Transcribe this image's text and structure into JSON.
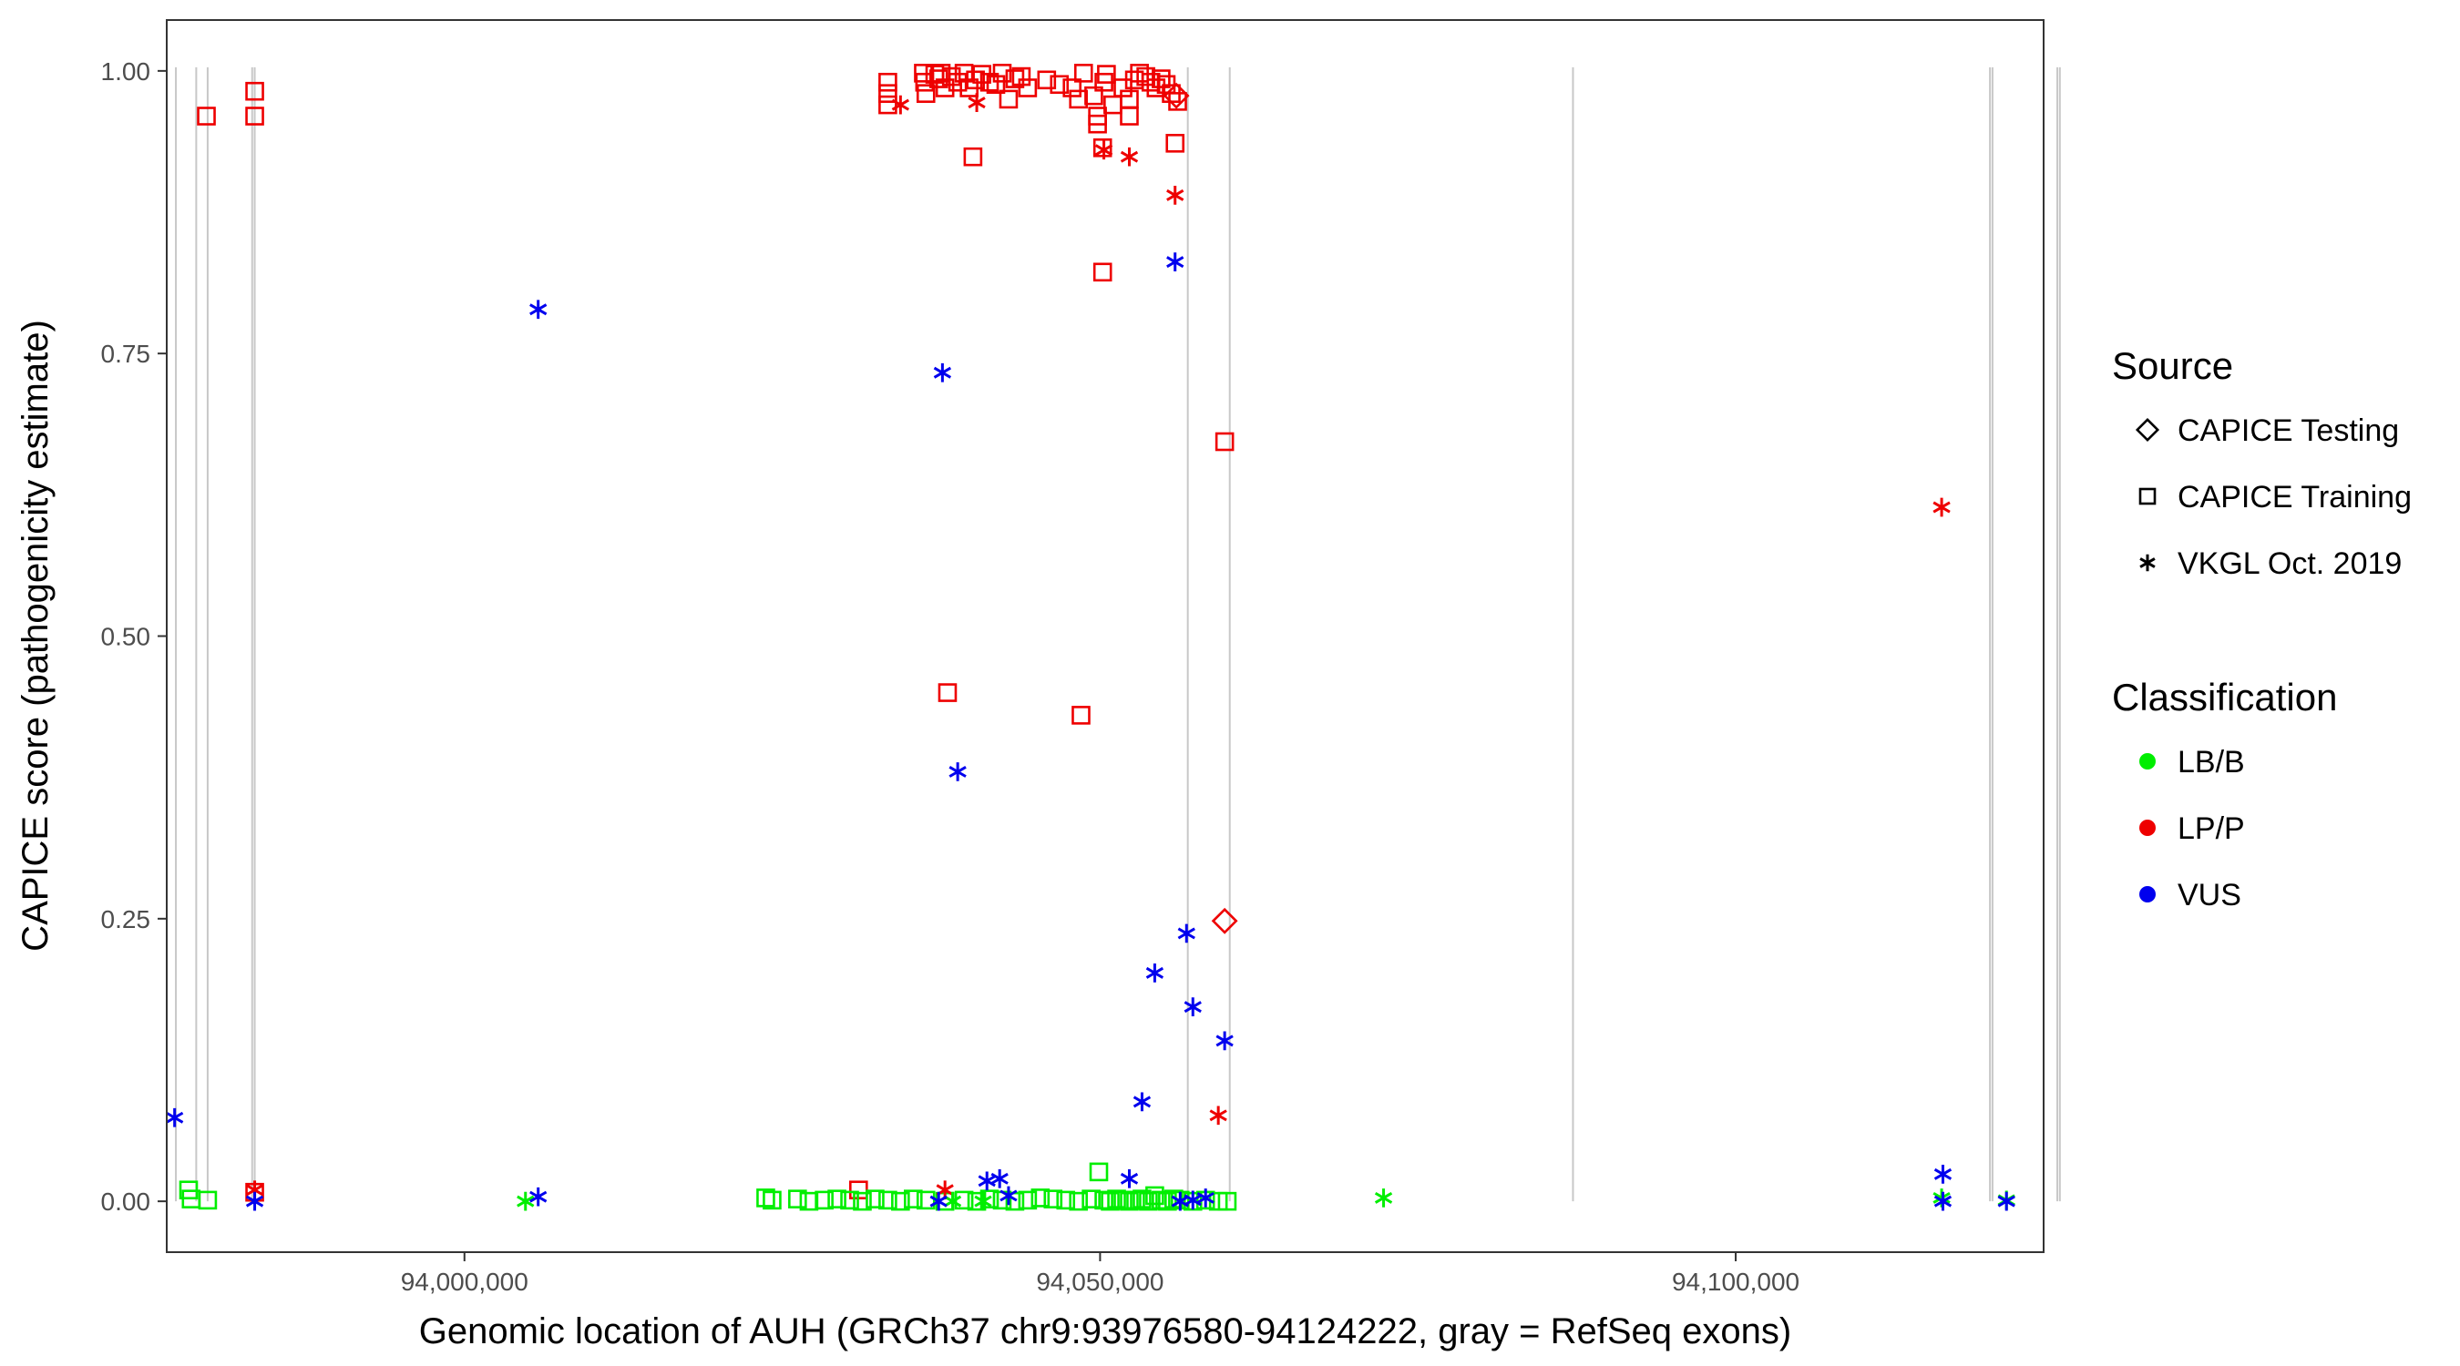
{
  "chart_data": {
    "type": "scatter",
    "title": "",
    "xlabel": "Genomic location of AUH (GRCh37 chr9:93976580-94124222, gray = RefSeq exons)",
    "ylabel": "CAPICE score (pathogenicity estimate)",
    "xlim": [
      93976580,
      94124222
    ],
    "ylim": [
      -0.045,
      1.045
    ],
    "x_ticks": [
      94000000,
      94050000,
      94100000
    ],
    "x_tick_labels": [
      "94,000,000",
      "94,050,000",
      "94,100,000"
    ],
    "y_ticks": [
      0,
      0.25,
      0.5,
      0.75,
      1.0
    ],
    "y_tick_labels": [
      "0.00",
      "0.25",
      "0.50",
      "0.75",
      "1.00"
    ],
    "grid": false,
    "exons": [
      93977300,
      93978900,
      93979800,
      93983300,
      93983500,
      94056900,
      94060200,
      94087200,
      94120000,
      94120200,
      94125300,
      94125500
    ],
    "colors": {
      "LB/B": "#00ee00",
      "LP/P": "#ee0000",
      "VUS": "#0000ee",
      "exon": "#c8c8c8"
    },
    "legend": {
      "source_title": "Source",
      "source_items": [
        {
          "shape": "diamond",
          "label": "CAPICE Testing"
        },
        {
          "shape": "square",
          "label": "CAPICE Training"
        },
        {
          "shape": "asterisk",
          "label": "VKGL Oct. 2019"
        }
      ],
      "class_title": "Classification",
      "class_items": [
        {
          "cls": "LB/B",
          "label": "LB/B"
        },
        {
          "cls": "LP/P",
          "label": "LP/P"
        },
        {
          "cls": "VUS",
          "label": "VUS"
        }
      ]
    },
    "series": [
      {
        "name": "CAPICE Training / LP/P",
        "shape": "square",
        "cls": "LP/P",
        "points": [
          [
            93979700,
            0.96
          ],
          [
            93983500,
            0.982
          ],
          [
            93983500,
            0.96
          ],
          [
            93983500,
            0.008
          ],
          [
            94033300,
            0.99
          ],
          [
            94033300,
            0.98
          ],
          [
            94033300,
            0.97
          ],
          [
            94036100,
            0.998
          ],
          [
            94036200,
            0.99
          ],
          [
            94036300,
            0.98
          ],
          [
            94037000,
            0.997
          ],
          [
            94037300,
            0.993
          ],
          [
            94037500,
            0.998
          ],
          [
            94037800,
            0.985
          ],
          [
            94038300,
            0.995
          ],
          [
            94038800,
            0.99
          ],
          [
            94039300,
            0.998
          ],
          [
            94039700,
            0.985
          ],
          [
            94040200,
            0.992
          ],
          [
            94040700,
            0.997
          ],
          [
            94041300,
            0.99
          ],
          [
            94041800,
            0.988
          ],
          [
            94042300,
            0.998
          ],
          [
            94042800,
            0.975
          ],
          [
            94043300,
            0.993
          ],
          [
            94043800,
            0.995
          ],
          [
            94044300,
            0.985
          ],
          [
            94045800,
            0.992
          ],
          [
            94046800,
            0.988
          ],
          [
            94047800,
            0.985
          ],
          [
            94048300,
            0.975
          ],
          [
            94048700,
            0.998
          ],
          [
            94049500,
            0.978
          ],
          [
            94049800,
            0.96
          ],
          [
            94050300,
            0.99
          ],
          [
            94050500,
            0.997
          ],
          [
            94051000,
            0.97
          ],
          [
            94051800,
            0.985
          ],
          [
            94052300,
            0.975
          ],
          [
            94052700,
            0.992
          ],
          [
            94053100,
            0.998
          ],
          [
            94053600,
            0.995
          ],
          [
            94054000,
            0.99
          ],
          [
            94054400,
            0.985
          ],
          [
            94054800,
            0.993
          ],
          [
            94055200,
            0.988
          ],
          [
            94055600,
            0.98
          ],
          [
            94040000,
            0.924
          ],
          [
            94049800,
            0.953
          ],
          [
            94050200,
            0.932
          ],
          [
            94052300,
            0.96
          ],
          [
            94055900,
            0.936
          ],
          [
            94056100,
            0.973
          ],
          [
            94050200,
            0.822
          ],
          [
            94059800,
            0.672
          ],
          [
            94038000,
            0.45
          ],
          [
            94048500,
            0.43
          ],
          [
            94031000,
            0.01
          ]
        ]
      },
      {
        "name": "CAPICE Training / LB/B",
        "shape": "square",
        "cls": "LB/B",
        "points": [
          [
            93978300,
            0.01
          ],
          [
            93978500,
            0.002
          ],
          [
            93979800,
            0.001
          ],
          [
            94023700,
            0.003
          ],
          [
            94024200,
            0.001
          ],
          [
            94026200,
            0.002
          ],
          [
            94027100,
            0.0
          ],
          [
            94028300,
            0.001
          ],
          [
            94029300,
            0.002
          ],
          [
            94030300,
            0.001
          ],
          [
            94031300,
            0.0
          ],
          [
            94032300,
            0.002
          ],
          [
            94033300,
            0.001
          ],
          [
            94034300,
            0.0
          ],
          [
            94035300,
            0.002
          ],
          [
            94036300,
            0.001
          ],
          [
            94037800,
            0.0
          ],
          [
            94039300,
            0.001
          ],
          [
            94040300,
            0.0
          ],
          [
            94041300,
            0.002
          ],
          [
            94042300,
            0.001
          ],
          [
            94043300,
            0.0
          ],
          [
            94044300,
            0.001
          ],
          [
            94045300,
            0.003
          ],
          [
            94046300,
            0.002
          ],
          [
            94047300,
            0.001
          ],
          [
            94048300,
            0.0
          ],
          [
            94049300,
            0.002
          ],
          [
            94049900,
            0.026
          ],
          [
            94050300,
            0.001
          ],
          [
            94050800,
            0.0
          ],
          [
            94051300,
            0.002
          ],
          [
            94051800,
            0.001
          ],
          [
            94052300,
            0.0
          ],
          [
            94052800,
            0.001
          ],
          [
            94053300,
            0.002
          ],
          [
            94053800,
            0.0
          ],
          [
            94054300,
            0.005
          ],
          [
            94054800,
            0.001
          ],
          [
            94055300,
            0.0
          ],
          [
            94055800,
            0.002
          ],
          [
            94056300,
            0.001
          ],
          [
            94057300,
            0.0
          ],
          [
            94058300,
            0.001
          ],
          [
            94059300,
            0.0
          ],
          [
            94060000,
            0.0
          ]
        ]
      },
      {
        "name": "VKGL / LP/P",
        "shape": "asterisk",
        "cls": "LP/P",
        "points": [
          [
            94034300,
            0.97
          ],
          [
            94040300,
            0.972
          ],
          [
            94050300,
            0.93
          ],
          [
            94052300,
            0.924
          ],
          [
            94055900,
            0.89
          ],
          [
            94059300,
            0.076
          ],
          [
            94116200,
            0.614
          ],
          [
            94037800,
            0.01
          ],
          [
            93983500,
            0.01
          ]
        ]
      },
      {
        "name": "VKGL / LB/B",
        "shape": "asterisk",
        "cls": "LB/B",
        "points": [
          [
            94004800,
            0.0
          ],
          [
            94038400,
            0.0
          ],
          [
            94040800,
            0.0
          ],
          [
            94072300,
            0.003
          ],
          [
            94116200,
            0.003
          ],
          [
            94121300,
            0.001
          ]
        ]
      },
      {
        "name": "VKGL / VUS",
        "shape": "asterisk",
        "cls": "VUS",
        "points": [
          [
            93977200,
            0.074
          ],
          [
            93983500,
            0.0
          ],
          [
            94005800,
            0.789
          ],
          [
            94005800,
            0.004
          ],
          [
            94037600,
            0.733
          ],
          [
            94038800,
            0.38
          ],
          [
            94037300,
            0.0
          ],
          [
            94041100,
            0.018
          ],
          [
            94042100,
            0.02
          ],
          [
            94042800,
            0.005
          ],
          [
            94052300,
            0.02
          ],
          [
            94053300,
            0.088
          ],
          [
            94054300,
            0.202
          ],
          [
            94055900,
            0.831
          ],
          [
            94056800,
            0.237
          ],
          [
            94057300,
            0.172
          ],
          [
            94059800,
            0.142
          ],
          [
            94056300,
            0.0
          ],
          [
            94057300,
            0.001
          ],
          [
            94058300,
            0.003
          ],
          [
            94116300,
            0.024
          ],
          [
            94116300,
            0.0
          ],
          [
            94121300,
            0.0
          ]
        ]
      },
      {
        "name": "CAPICE Testing / LP/P",
        "shape": "diamond",
        "cls": "LP/P",
        "points": [
          [
            94059800,
            0.248
          ],
          [
            94056000,
            0.978
          ]
        ]
      }
    ]
  }
}
